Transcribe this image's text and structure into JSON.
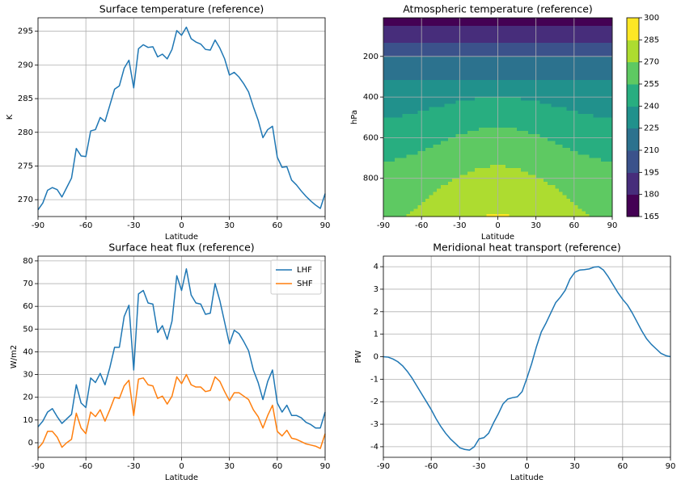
{
  "chart_data": [
    {
      "type": "line",
      "title": "Surface temperature (reference)",
      "xlabel": "Latitude",
      "ylabel": "K",
      "x": [
        -90,
        -87,
        -84,
        -81,
        -78,
        -75,
        -72,
        -69,
        -66,
        -63,
        -60,
        -57,
        -54,
        -51,
        -48,
        -45,
        -42,
        -39,
        -36,
        -33,
        -30,
        -27,
        -24,
        -21,
        -18,
        -15,
        -12,
        -9,
        -6,
        -3,
        0,
        3,
        6,
        9,
        12,
        15,
        18,
        21,
        24,
        27,
        30,
        33,
        36,
        39,
        42,
        45,
        48,
        51,
        54,
        57,
        60,
        63,
        66,
        69,
        72,
        75,
        78,
        81,
        84,
        87,
        90
      ],
      "series": [
        {
          "color": "#1f77b4",
          "values": [
            268.5,
            269.5,
            271.4,
            271.8,
            271.5,
            270.4,
            271.8,
            273.2,
            277.6,
            276.5,
            276.4,
            280.2,
            280.4,
            282.2,
            281.6,
            284,
            286.4,
            286.9,
            289.5,
            290.7,
            286.6,
            292.4,
            293,
            292.6,
            292.7,
            291.2,
            291.6,
            290.9,
            292.3,
            295.1,
            294.4,
            295.6,
            293.9,
            293.4,
            293.1,
            292.3,
            292.2,
            293.7,
            292.5,
            290.9,
            288.5,
            288.9,
            288.2,
            287.2,
            286,
            283.8,
            281.8,
            279.2,
            280.4,
            280.9,
            276.3,
            274.8,
            274.9,
            272.9,
            272.2,
            271.3,
            270.5,
            269.8,
            269.2,
            268.7,
            270.9
          ]
        }
      ],
      "xlim": [
        -90,
        90
      ],
      "xticks": [
        -90,
        -60,
        -30,
        0,
        30,
        60,
        90
      ],
      "ylim": [
        267.5,
        297
      ],
      "yticks": [
        270,
        275,
        280,
        285,
        290,
        295
      ],
      "grid": true
    },
    {
      "type": "contour",
      "title": "Atmospheric temperature (reference)",
      "xlabel": "Latitude",
      "ylabel": "hPa",
      "x": [
        -90,
        -75,
        -60,
        -45,
        -30,
        -15,
        0,
        15,
        30,
        45,
        60,
        75,
        90
      ],
      "y": [
        10,
        50,
        100,
        150,
        200,
        250,
        300,
        350,
        400,
        450,
        500,
        550,
        600,
        650,
        700,
        750,
        800,
        850,
        900,
        950,
        988
      ],
      "z": [
        [
          163,
          163,
          163,
          163,
          163,
          163,
          163,
          163,
          163,
          163,
          163,
          163,
          163
        ],
        [
          180,
          179.9,
          179.8,
          179.5,
          179.2,
          179.1,
          179,
          179.1,
          179.2,
          179.5,
          179.8,
          179.9,
          180
        ],
        [
          190,
          189.9,
          189.8,
          189.5,
          189.2,
          189.1,
          189,
          189.1,
          189.2,
          189.5,
          189.8,
          189.9,
          190
        ],
        [
          200,
          199.9,
          199.8,
          199.5,
          199.2,
          199.1,
          199,
          199.1,
          199.2,
          199.5,
          199.8,
          199.9,
          200
        ],
        [
          210,
          210,
          210,
          210,
          210,
          210,
          210,
          210,
          210,
          210,
          210,
          210,
          210
        ],
        [
          215,
          215.2,
          215.8,
          216.5,
          217.2,
          217.8,
          218,
          217.8,
          217.2,
          216.5,
          215.8,
          215.2,
          215
        ],
        [
          222,
          222.1,
          222.3,
          222.5,
          222.8,
          222.9,
          223,
          222.9,
          222.8,
          222.5,
          222.3,
          222.1,
          222
        ],
        [
          228,
          228.1,
          228.5,
          229,
          229.5,
          229.9,
          230,
          229.9,
          229.5,
          229,
          228.5,
          228.1,
          228
        ],
        [
          232,
          232.5,
          234,
          236,
          238,
          239.5,
          240,
          239.5,
          238,
          236,
          234,
          232.5,
          232
        ],
        [
          236,
          236.6,
          238.3,
          240.5,
          242.8,
          244.4,
          245,
          244.4,
          242.8,
          240.5,
          238.3,
          236.6,
          236
        ],
        [
          240,
          240.7,
          242.5,
          245,
          247.5,
          249.3,
          250,
          249.3,
          247.5,
          245,
          242.5,
          240.7,
          240
        ],
        [
          244,
          244.7,
          246.8,
          249.5,
          252.3,
          254.3,
          255,
          254.3,
          252.3,
          249.5,
          246.8,
          244.7,
          244
        ],
        [
          248,
          248.7,
          250.8,
          253.5,
          256.3,
          258.3,
          259,
          258.3,
          256.3,
          253.5,
          250.8,
          248.7,
          248
        ],
        [
          251,
          251.8,
          254,
          257,
          260,
          262.2,
          263,
          262.2,
          260,
          257,
          254,
          251.8,
          251
        ],
        [
          254,
          254.9,
          257.3,
          260.5,
          263.8,
          266.1,
          267,
          266.1,
          263.8,
          260.5,
          257.3,
          254.9,
          254
        ],
        [
          257,
          257.9,
          260.5,
          264,
          267.5,
          270.1,
          271,
          270.1,
          267.5,
          264,
          260.5,
          257.9,
          257
        ],
        [
          260,
          260.9,
          263.5,
          267,
          270.5,
          273.1,
          274,
          273.1,
          270.5,
          267,
          263.5,
          260.9,
          260
        ],
        [
          263,
          264,
          266.8,
          270.5,
          274.3,
          277,
          278,
          277,
          274.3,
          270.5,
          266.8,
          264,
          263
        ],
        [
          265,
          266.1,
          269,
          273,
          277,
          279.9,
          281,
          279.9,
          277,
          273,
          269,
          266.1,
          265
        ],
        [
          267,
          268.1,
          271.3,
          275.5,
          279.8,
          282.9,
          284,
          282.9,
          279.8,
          275.5,
          271.3,
          268.1,
          267
        ],
        [
          268,
          269.2,
          272.5,
          277,
          281.5,
          284.8,
          286,
          284.8,
          281.5,
          277,
          272.5,
          269.2,
          268
        ]
      ],
      "levels": [
        165,
        180,
        195,
        210,
        225,
        240,
        255,
        270,
        285,
        300
      ],
      "colors": [
        "#440154",
        "#472d7b",
        "#3b528b",
        "#2c728e",
        "#21918c",
        "#28ae80",
        "#5ec962",
        "#addc30",
        "#fde725"
      ],
      "xlim": [
        -90,
        90
      ],
      "xticks": [
        -90,
        -60,
        -30,
        0,
        30,
        60,
        90
      ],
      "ylim": [
        988,
        10
      ],
      "yticks": [
        200,
        400,
        600,
        800
      ],
      "grid": true
    },
    {
      "type": "line",
      "title": "Surface heat flux (reference)",
      "xlabel": "Latitude",
      "ylabel": "W/m2",
      "legend": "upper right",
      "x": [
        -90,
        -87,
        -84,
        -81,
        -78,
        -75,
        -72,
        -69,
        -66,
        -63,
        -60,
        -57,
        -54,
        -51,
        -48,
        -45,
        -42,
        -39,
        -36,
        -33,
        -30,
        -27,
        -24,
        -21,
        -18,
        -15,
        -12,
        -9,
        -6,
        -3,
        0,
        3,
        6,
        9,
        12,
        15,
        18,
        21,
        24,
        27,
        30,
        33,
        36,
        39,
        42,
        45,
        48,
        51,
        54,
        57,
        60,
        63,
        66,
        69,
        72,
        75,
        78,
        81,
        84,
        87,
        90
      ],
      "series": [
        {
          "name": "LHF",
          "color": "#1f77b4",
          "values": [
            7,
            9.5,
            13.5,
            15,
            11.5,
            8.5,
            10.5,
            12.5,
            25.5,
            17.5,
            15.5,
            28.5,
            26.5,
            30.5,
            25.5,
            33,
            42,
            42,
            55.5,
            60.5,
            32,
            65.5,
            67,
            61.5,
            61,
            48.5,
            51.5,
            45.5,
            53.5,
            73.5,
            67,
            76.5,
            65,
            61.5,
            61,
            56.5,
            57,
            70,
            62.5,
            53,
            43.5,
            49.5,
            48,
            44.5,
            40.5,
            32,
            26.5,
            19,
            27,
            32,
            17.5,
            13.5,
            16.5,
            12,
            12,
            11,
            9,
            8,
            6.5,
            6.5,
            13.5
          ]
        },
        {
          "name": "SHF",
          "color": "#ff7f0e",
          "values": [
            -2.5,
            0,
            5,
            5,
            2.5,
            -2,
            0,
            1.5,
            13,
            6.5,
            4,
            13.5,
            11.5,
            14.5,
            9.5,
            14.5,
            20,
            19.5,
            25,
            27.5,
            12,
            28,
            28.5,
            25.5,
            25,
            19.5,
            20.5,
            17,
            20.5,
            29,
            26,
            30,
            25.5,
            24.5,
            24.5,
            22.5,
            23,
            29,
            27,
            22.5,
            18.5,
            22,
            22,
            20.5,
            19,
            14.5,
            11.5,
            6.5,
            12,
            16.5,
            5,
            3,
            5.5,
            2,
            1.5,
            0.5,
            -0.5,
            -1,
            -1.5,
            -2.5,
            4
          ]
        }
      ],
      "xlim": [
        -90,
        90
      ],
      "xticks": [
        -90,
        -60,
        -30,
        0,
        30,
        60,
        90
      ],
      "ylim": [
        -6.4,
        82.1
      ],
      "yticks": [
        0,
        10,
        20,
        30,
        40,
        50,
        60,
        70,
        80
      ],
      "grid": true
    },
    {
      "type": "line",
      "title": "Meridional heat transport (reference)",
      "xlabel": "Latitude",
      "ylabel": "PW",
      "x": [
        -90,
        -87,
        -84,
        -81,
        -78,
        -75,
        -72,
        -69,
        -66,
        -63,
        -60,
        -57,
        -54,
        -51,
        -48,
        -45,
        -42,
        -39,
        -36,
        -33,
        -30,
        -27,
        -24,
        -21,
        -18,
        -15,
        -12,
        -9,
        -6,
        -3,
        0,
        3,
        6,
        9,
        12,
        15,
        18,
        21,
        24,
        27,
        30,
        33,
        36,
        39,
        42,
        45,
        48,
        51,
        54,
        57,
        60,
        63,
        66,
        69,
        72,
        75,
        78,
        81,
        84,
        87,
        90
      ],
      "series": [
        {
          "color": "#1f77b4",
          "values": [
            0,
            -0.02,
            -0.1,
            -0.22,
            -0.4,
            -0.65,
            -0.95,
            -1.3,
            -1.65,
            -2,
            -2.35,
            -2.75,
            -3.1,
            -3.4,
            -3.65,
            -3.85,
            -4.05,
            -4.12,
            -4.15,
            -4,
            -3.65,
            -3.6,
            -3.4,
            -2.95,
            -2.55,
            -2.1,
            -1.88,
            -1.82,
            -1.78,
            -1.55,
            -0.95,
            -0.3,
            0.45,
            1.1,
            1.5,
            1.95,
            2.4,
            2.65,
            2.95,
            3.45,
            3.75,
            3.85,
            3.87,
            3.9,
            3.98,
            4,
            3.85,
            3.55,
            3.2,
            2.85,
            2.55,
            2.3,
            1.95,
            1.55,
            1.15,
            0.8,
            0.55,
            0.35,
            0.15,
            0.05,
            0
          ]
        }
      ],
      "xlim": [
        -90,
        90
      ],
      "xticks": [
        -90,
        -60,
        -30,
        0,
        30,
        60,
        90
      ],
      "ylim": [
        -4.47,
        4.47
      ],
      "yticks": [
        -4,
        -3,
        -2,
        -1,
        0,
        1,
        2,
        3,
        4
      ],
      "grid": true
    }
  ]
}
